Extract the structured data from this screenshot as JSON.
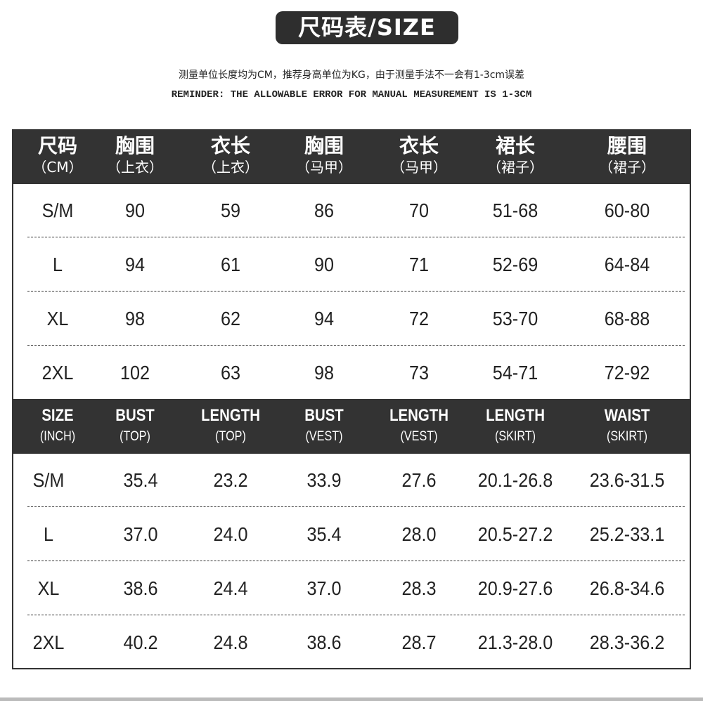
{
  "title": "尺码表/SIZE",
  "note_cn": "测量单位长度均为CM，推荐身高单位为KG，由于测量手法不一会有1-3cm误差",
  "note_en": "REMINDER: THE ALLOWABLE ERROR FOR MANUAL MEASUREMENT IS 1-3CM",
  "cm_table": {
    "headers": [
      [
        "尺码",
        "（CM）"
      ],
      [
        "胸围",
        "（上衣）"
      ],
      [
        "衣长",
        "（上衣）"
      ],
      [
        "胸围",
        "（马甲）"
      ],
      [
        "衣长",
        "（马甲）"
      ],
      [
        "裙长",
        "（裙子）"
      ],
      [
        "腰围",
        "（裙子）"
      ]
    ],
    "rows": [
      [
        "S/M",
        "90",
        "59",
        "86",
        "70",
        "51-68",
        "60-80"
      ],
      [
        "L",
        "94",
        "61",
        "90",
        "71",
        "52-69",
        "64-84"
      ],
      [
        "XL",
        "98",
        "62",
        "94",
        "72",
        "53-70",
        "68-88"
      ],
      [
        "2XL",
        "102",
        "63",
        "98",
        "73",
        "54-71",
        "72-92"
      ]
    ]
  },
  "inch_table": {
    "headers": [
      [
        "SIZE",
        "(INCH)"
      ],
      [
        "BUST",
        "(TOP)"
      ],
      [
        "LENGTH",
        "(TOP)"
      ],
      [
        "BUST",
        "(VEST)"
      ],
      [
        "LENGTH",
        "(VEST)"
      ],
      [
        "LENGTH",
        "(SKIRT)"
      ],
      [
        "WAIST",
        "(SKIRT)"
      ]
    ],
    "rows": [
      [
        "S/M",
        "35.4",
        "23.2",
        "33.9",
        "27.6",
        "20.1-26.8",
        "23.6-31.5"
      ],
      [
        "L",
        "37.0",
        "24.0",
        "35.4",
        "28.0",
        "20.5-27.2",
        "25.2-33.1"
      ],
      [
        "XL",
        "38.6",
        "24.4",
        "37.0",
        "28.3",
        "20.9-27.6",
        "26.8-34.6"
      ],
      [
        "2XL",
        "40.2",
        "24.8",
        "38.6",
        "28.7",
        "21.3-28.0",
        "28.3-36.2"
      ]
    ]
  }
}
